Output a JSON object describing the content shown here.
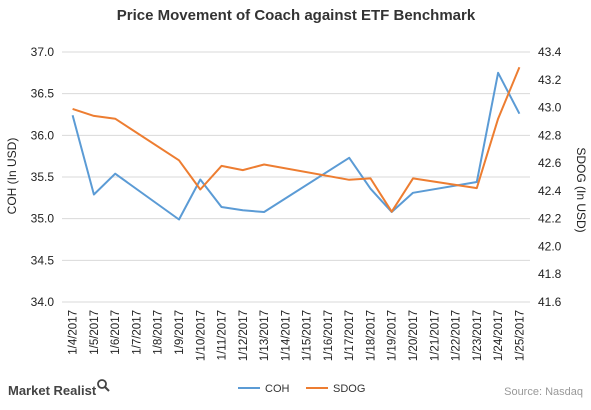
{
  "chart_data": {
    "type": "line",
    "title": "Price Movement of Coach against ETF Benchmark",
    "x": [
      "1/4/2017",
      "1/5/2017",
      "1/6/2017",
      "1/7/2017",
      "1/8/2017",
      "1/9/2017",
      "1/10/2017",
      "1/11/2017",
      "1/12/2017",
      "1/13/2017",
      "1/14/2017",
      "1/15/2017",
      "1/16/2017",
      "1/17/2017",
      "1/18/2017",
      "1/19/2017",
      "1/20/2017",
      "1/21/2017",
      "1/22/2017",
      "1/23/2017",
      "1/24/2017",
      "1/25/2017"
    ],
    "y_left": {
      "label": "COH (In USD)",
      "range": [
        34.0,
        37.0
      ],
      "ticks": [
        "34.0",
        "34.5",
        "35.0",
        "35.5",
        "36.0",
        "36.5",
        "37.0"
      ]
    },
    "y_right": {
      "label": "SDOG (In USD)",
      "range": [
        41.6,
        43.4
      ],
      "ticks": [
        "41.6",
        "41.8",
        "42.0",
        "42.2",
        "42.4",
        "42.6",
        "42.8",
        "43.0",
        "43.2",
        "43.4"
      ]
    },
    "series": [
      {
        "name": "COH",
        "axis": "left",
        "color": "#5b9bd5",
        "values": [
          36.24,
          35.29,
          35.54,
          null,
          null,
          34.99,
          35.47,
          35.14,
          35.1,
          35.08,
          null,
          null,
          null,
          35.73,
          35.36,
          35.08,
          35.31,
          null,
          null,
          35.44,
          36.75,
          36.26
        ]
      },
      {
        "name": "SDOG",
        "axis": "right",
        "color": "#ed7d31",
        "values": [
          42.99,
          42.94,
          42.92,
          null,
          null,
          42.62,
          42.41,
          42.58,
          42.55,
          42.59,
          null,
          null,
          null,
          42.48,
          42.49,
          42.25,
          42.49,
          null,
          null,
          42.42,
          42.92,
          43.29
        ]
      }
    ],
    "legend_position": "bottom",
    "grid": true,
    "source": "Source: Nasdaq",
    "brand": "Market Realist"
  }
}
